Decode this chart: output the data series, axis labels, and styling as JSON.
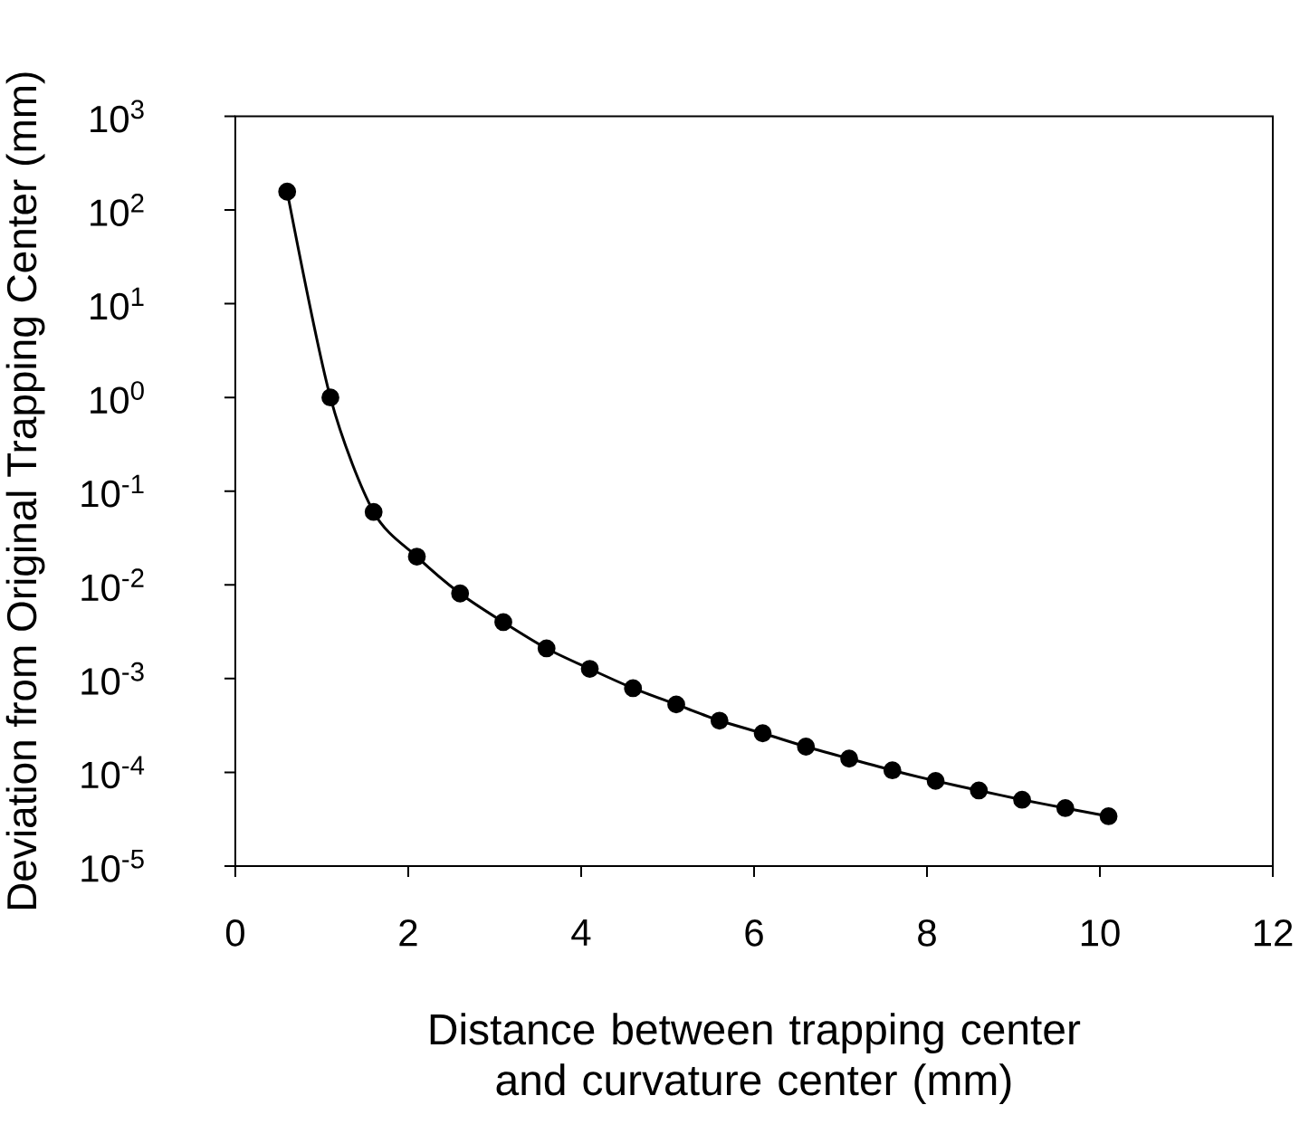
{
  "chart_data": {
    "type": "line",
    "xlabel": "Distance between trapping center and curvature center (mm)",
    "ylabel": "Deviation from Original Trapping Center (mm)",
    "log": "y",
    "grid": false,
    "marker": "circle",
    "line_style": "solid",
    "xlim": [
      0,
      12
    ],
    "xticks": [
      0,
      2,
      4,
      6,
      8,
      10,
      12
    ],
    "ylim": [
      1e-05,
      1000
    ],
    "yticks": [
      {
        "value": 1e-05,
        "label": "10$^{-5}$"
      },
      {
        "value": 0.0001,
        "label": "10$^{-4}$"
      },
      {
        "value": 0.001,
        "label": "10$^{-3}$"
      },
      {
        "value": 0.01,
        "label": "10$^{-2}$"
      },
      {
        "value": 0.1,
        "label": "10$^{-1}$"
      },
      {
        "value": 1,
        "label": "10$^{0}$"
      },
      {
        "value": 10,
        "label": "10$^{1}$"
      },
      {
        "value": 100,
        "label": "10$^{2}$"
      },
      {
        "value": 1000,
        "label": "10$^{3}$"
      }
    ],
    "x": [
      0.6,
      1.1,
      1.6,
      2.1,
      2.6,
      3.1,
      3.6,
      4.1,
      4.6,
      5.1,
      5.6,
      6.1,
      6.6,
      7.1,
      7.6,
      8.1,
      8.6,
      9.1,
      9.6,
      10.1
    ],
    "series": [
      {
        "color": "#000000",
        "values": [
          157,
          1,
          0.06,
          0.02,
          0.0081,
          0.004,
          0.0021,
          0.00127,
          0.00079,
          0.00053,
          0.000356,
          0.000261,
          0.000188,
          0.00014,
          0.000105,
          8.1e-05,
          6.4e-05,
          5.1e-05,
          4.15e-05,
          3.4e-05
        ]
      }
    ]
  }
}
